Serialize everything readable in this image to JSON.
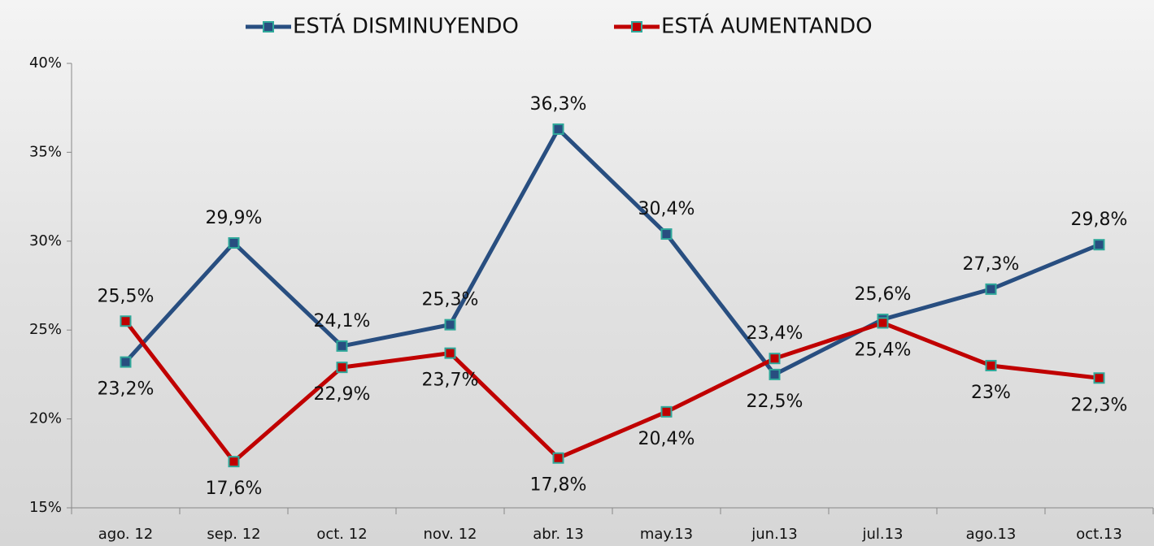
{
  "chart_data": {
    "type": "line",
    "categories": [
      "ago. 12",
      "sep. 12",
      "oct. 12",
      "nov. 12",
      "abr. 13",
      "may.13",
      "jun.13",
      "jul.13",
      "ago.13",
      "oct.13"
    ],
    "series": [
      {
        "name": "ESTÁ DISMINUYENDO",
        "color": "#284e80",
        "values": [
          23.2,
          29.9,
          24.1,
          25.3,
          36.3,
          30.4,
          22.5,
          25.6,
          27.3,
          29.8
        ],
        "value_labels": [
          "23,2%",
          "29,9%",
          "24,1%",
          "25,3%",
          "36,3%",
          "30,4%",
          "22,5%",
          "25,6%",
          "27,3%",
          "29,8%"
        ]
      },
      {
        "name": "ESTÁ AUMENTANDO",
        "color": "#c00000",
        "values": [
          25.5,
          17.6,
          22.9,
          23.7,
          17.8,
          20.4,
          23.4,
          25.4,
          23,
          22.3
        ],
        "value_labels": [
          "25,5%",
          "17,6%",
          "22,9%",
          "23,7%",
          "17,8%",
          "20,4%",
          "23,4%",
          "25,4%",
          "23%",
          "22,3%"
        ]
      }
    ],
    "ylim": [
      15,
      40
    ],
    "yticks": [
      {
        "value": 15,
        "label": "15%"
      },
      {
        "value": 20,
        "label": "20%"
      },
      {
        "value": 25,
        "label": "25%"
      },
      {
        "value": 30,
        "label": "30%"
      },
      {
        "value": 35,
        "label": "35%"
      },
      {
        "value": 40,
        "label": "40%"
      }
    ],
    "legend": "top"
  }
}
